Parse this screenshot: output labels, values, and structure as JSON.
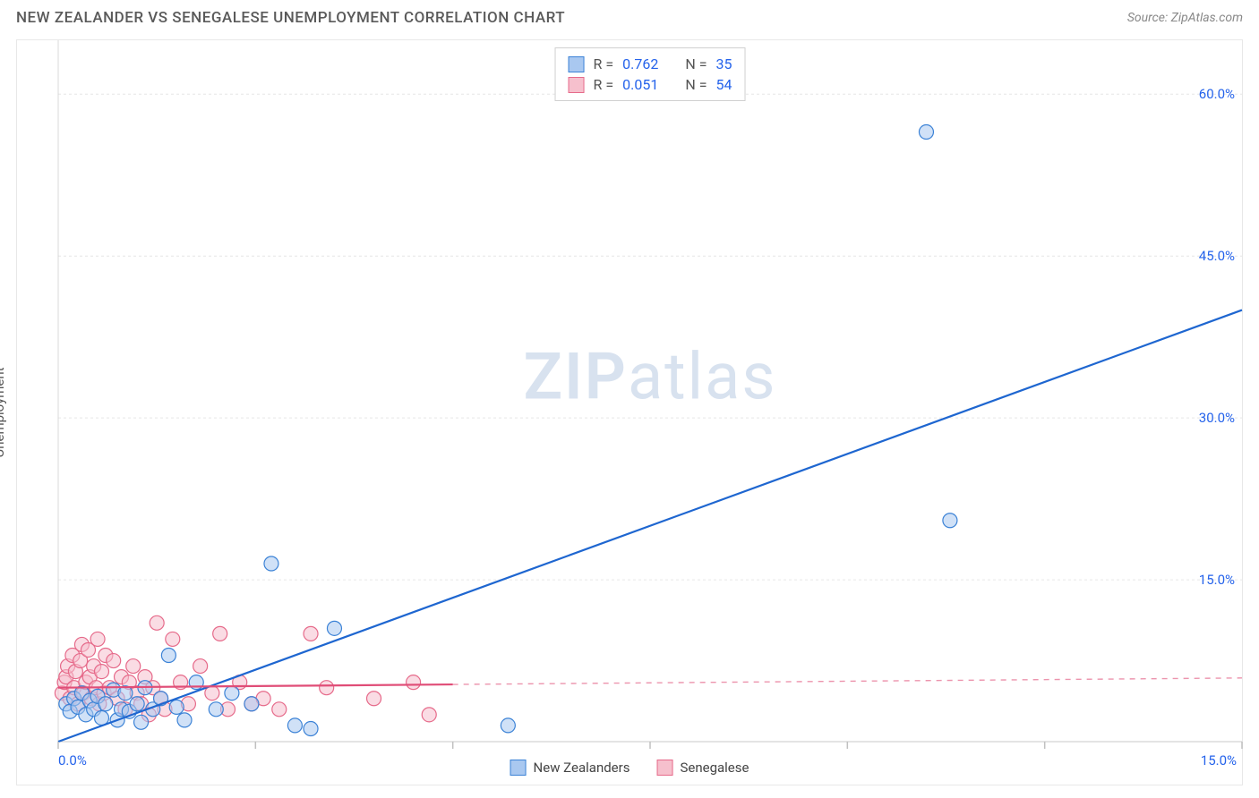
{
  "header": {
    "title": "NEW ZEALANDER VS SENEGALESE UNEMPLOYMENT CORRELATION CHART",
    "source": "Source: ZipAtlas.com"
  },
  "axes": {
    "y_label": "Unemployment",
    "x_min_label": "0.0%",
    "x_max_label": "15.0%",
    "xlim": [
      0,
      15
    ],
    "ylim": [
      0,
      65
    ],
    "y_ticks": [
      {
        "v": 15,
        "label": "15.0%"
      },
      {
        "v": 30,
        "label": "30.0%"
      },
      {
        "v": 45,
        "label": "45.0%"
      },
      {
        "v": 60,
        "label": "60.0%"
      }
    ],
    "x_tick_positions": [
      0,
      2.5,
      5,
      7.5,
      10,
      12.5,
      15
    ],
    "grid_color": "#e6e6e6",
    "tick_color": "#c0c0c0"
  },
  "watermark": {
    "zip": "ZIP",
    "rest": "atlas"
  },
  "series": {
    "blue": {
      "name": "New Zealanders",
      "fill": "#a9c8f0",
      "stroke": "#3b82d6",
      "line_color": "#1e66d0",
      "r_label": "R =",
      "r_value": "0.762",
      "n_label": "N =",
      "n_value": "35",
      "regression": {
        "x1": 0,
        "y1": 0,
        "x2": 15,
        "y2": 40
      },
      "regression_dash_from_x": 15,
      "points": [
        [
          0.1,
          3.5
        ],
        [
          0.15,
          2.8
        ],
        [
          0.2,
          4.0
        ],
        [
          0.25,
          3.2
        ],
        [
          0.3,
          4.5
        ],
        [
          0.35,
          2.5
        ],
        [
          0.4,
          3.8
        ],
        [
          0.45,
          3.0
        ],
        [
          0.5,
          4.2
        ],
        [
          0.55,
          2.2
        ],
        [
          0.6,
          3.5
        ],
        [
          0.7,
          4.8
        ],
        [
          0.75,
          2.0
        ],
        [
          0.8,
          3.0
        ],
        [
          0.85,
          4.5
        ],
        [
          0.9,
          2.8
        ],
        [
          1.0,
          3.5
        ],
        [
          1.05,
          1.8
        ],
        [
          1.1,
          5.0
        ],
        [
          1.2,
          3.0
        ],
        [
          1.3,
          4.0
        ],
        [
          1.4,
          8.0
        ],
        [
          1.5,
          3.2
        ],
        [
          1.6,
          2.0
        ],
        [
          1.75,
          5.5
        ],
        [
          2.0,
          3.0
        ],
        [
          2.2,
          4.5
        ],
        [
          2.45,
          3.5
        ],
        [
          2.7,
          16.5
        ],
        [
          3.0,
          1.5
        ],
        [
          3.2,
          1.2
        ],
        [
          3.5,
          10.5
        ],
        [
          5.7,
          1.5
        ],
        [
          11.3,
          20.5
        ],
        [
          11.0,
          56.5
        ]
      ]
    },
    "pink": {
      "name": "Senegalese",
      "fill": "#f6c0cd",
      "stroke": "#e66a8a",
      "line_color": "#e04d77",
      "r_label": "R =",
      "r_value": "0.051",
      "n_label": "N =",
      "n_value": "54",
      "regression": {
        "x1": 0,
        "y1": 5.0,
        "x2": 5.0,
        "y2": 5.3
      },
      "regression_extend": {
        "x1": 5.0,
        "y1": 5.3,
        "x2": 15,
        "y2": 5.9
      },
      "points": [
        [
          0.05,
          4.5
        ],
        [
          0.08,
          5.5
        ],
        [
          0.1,
          6.0
        ],
        [
          0.12,
          7.0
        ],
        [
          0.15,
          4.0
        ],
        [
          0.18,
          8.0
        ],
        [
          0.2,
          5.0
        ],
        [
          0.22,
          6.5
        ],
        [
          0.25,
          3.5
        ],
        [
          0.28,
          7.5
        ],
        [
          0.3,
          9.0
        ],
        [
          0.32,
          4.5
        ],
        [
          0.35,
          5.5
        ],
        [
          0.38,
          8.5
        ],
        [
          0.4,
          6.0
        ],
        [
          0.42,
          4.0
        ],
        [
          0.45,
          7.0
        ],
        [
          0.48,
          5.0
        ],
        [
          0.5,
          9.5
        ],
        [
          0.52,
          3.5
        ],
        [
          0.55,
          6.5
        ],
        [
          0.58,
          4.5
        ],
        [
          0.6,
          8.0
        ],
        [
          0.65,
          5.0
        ],
        [
          0.7,
          7.5
        ],
        [
          0.75,
          4.0
        ],
        [
          0.8,
          6.0
        ],
        [
          0.85,
          3.0
        ],
        [
          0.9,
          5.5
        ],
        [
          0.95,
          7.0
        ],
        [
          1.0,
          4.5
        ],
        [
          1.05,
          3.5
        ],
        [
          1.1,
          6.0
        ],
        [
          1.15,
          2.5
        ],
        [
          1.2,
          5.0
        ],
        [
          1.25,
          11.0
        ],
        [
          1.3,
          4.0
        ],
        [
          1.35,
          3.0
        ],
        [
          1.45,
          9.5
        ],
        [
          1.55,
          5.5
        ],
        [
          1.65,
          3.5
        ],
        [
          1.8,
          7.0
        ],
        [
          1.95,
          4.5
        ],
        [
          2.05,
          10.0
        ],
        [
          2.15,
          3.0
        ],
        [
          2.3,
          5.5
        ],
        [
          2.45,
          3.5
        ],
        [
          2.6,
          4.0
        ],
        [
          2.8,
          3.0
        ],
        [
          3.2,
          10.0
        ],
        [
          3.4,
          5.0
        ],
        [
          4.0,
          4.0
        ],
        [
          4.5,
          5.5
        ],
        [
          4.7,
          2.5
        ]
      ]
    }
  },
  "marker_radius": 8,
  "marker_opacity": 0.55,
  "line_width": 2.2
}
